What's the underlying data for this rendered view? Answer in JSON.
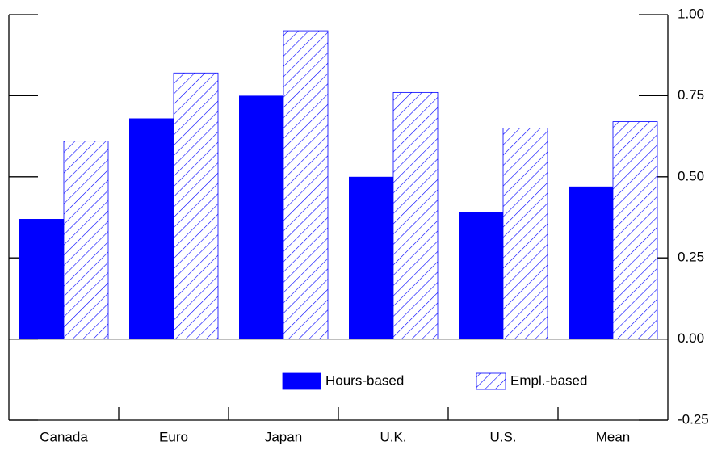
{
  "chart_data": {
    "type": "bar",
    "categories": [
      "Canada",
      "Euro",
      "Japan",
      "U.K.",
      "U.S.",
      "Mean"
    ],
    "series": [
      {
        "name": "Hours-based",
        "color": "#0000ff",
        "pattern": "solid",
        "values": [
          0.37,
          0.68,
          0.75,
          0.5,
          0.39,
          0.47
        ]
      },
      {
        "name": "Empl.-based",
        "color": "#0000ff",
        "pattern": "hatch",
        "values": [
          0.61,
          0.82,
          0.95,
          0.76,
          0.65,
          0.67
        ]
      }
    ],
    "ylim": [
      -0.25,
      1.0
    ],
    "yticks": [
      {
        "value": -0.25,
        "label": "-0.25"
      },
      {
        "value": 0,
        "label": "0.00"
      },
      {
        "value": 0.25,
        "label": "0.25"
      },
      {
        "value": 0.5,
        "label": "0.50"
      },
      {
        "value": 0.75,
        "label": "0.75"
      },
      {
        "value": 1.0,
        "label": "1.00"
      }
    ]
  }
}
